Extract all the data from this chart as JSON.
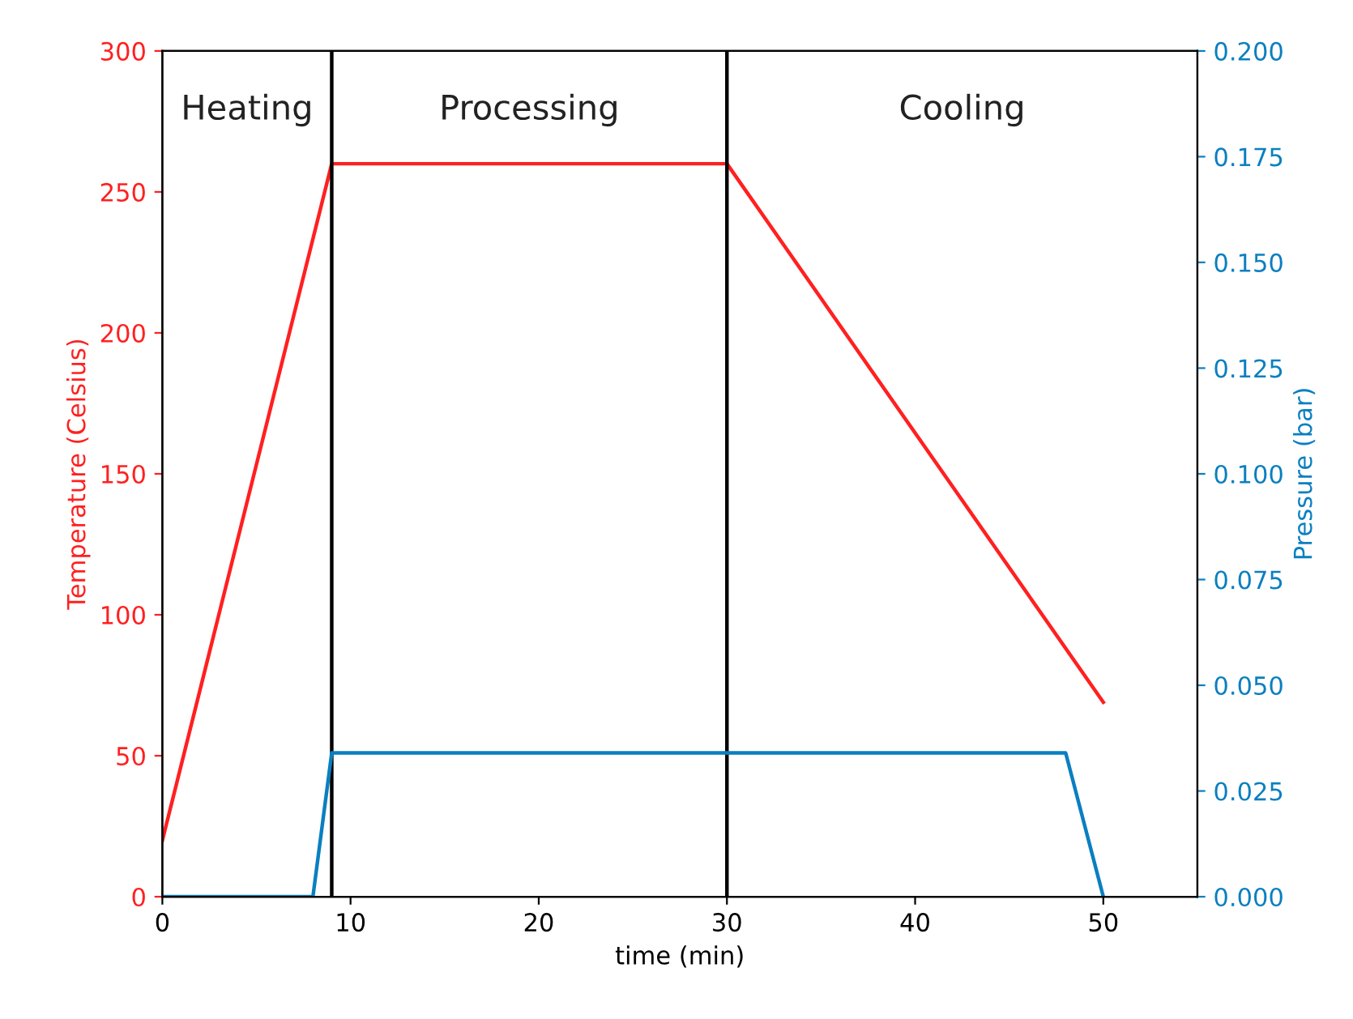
{
  "chart_data": {
    "type": "line",
    "xlabel": "time (min)",
    "ylabel": "Temperature (Celsius)",
    "y2label": "Pressure (bar)",
    "series": [
      {
        "color": "#ff2020",
        "x": [
          0,
          9,
          30,
          50
        ],
        "values": [
          20,
          260,
          260,
          69
        ]
      },
      {
        "color": "#0a7fc0",
        "axis": "y2",
        "x": [
          0,
          8,
          9,
          48,
          50
        ],
        "values": [
          0,
          0,
          0.034,
          0.034,
          0
        ]
      }
    ],
    "xlim": [
      0,
      55
    ],
    "xticks": [
      0,
      10,
      20,
      30,
      40,
      50
    ],
    "ylim": [
      0,
      300
    ],
    "yticks": [
      0,
      50,
      100,
      150,
      200,
      250,
      300
    ],
    "y2lim": [
      0,
      0.2
    ],
    "y2ticks": [
      {
        "value": 0,
        "label": "0.000"
      },
      {
        "value": 0.025,
        "label": "0.025"
      },
      {
        "value": 0.05,
        "label": "0.050"
      },
      {
        "value": 0.075,
        "label": "0.075"
      },
      {
        "value": 0.1,
        "label": "0.100"
      },
      {
        "value": 0.125,
        "label": "0.125"
      },
      {
        "value": 0.15,
        "label": "0.150"
      },
      {
        "value": 0.175,
        "label": "0.175"
      },
      {
        "value": 0.2,
        "label": "0.200"
      }
    ],
    "ref_lines": [
      {
        "axis": "x",
        "value": 9,
        "color": "#000000"
      },
      {
        "axis": "x",
        "value": 30,
        "color": "#000000"
      }
    ],
    "annotations": [
      "Heating",
      "Processing",
      "Cooling"
    ],
    "grid": false,
    "legend": false
  }
}
